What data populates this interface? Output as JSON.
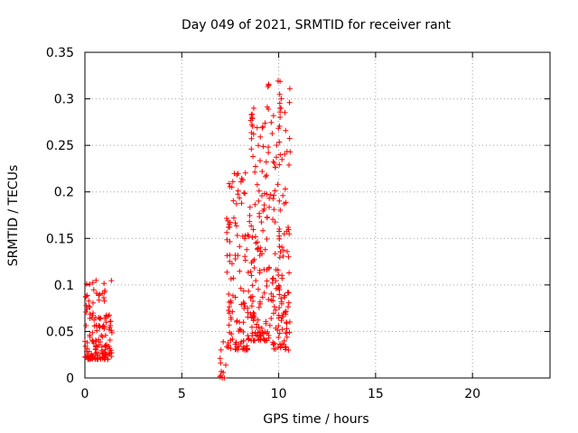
{
  "chart_data": {
    "type": "scatter",
    "title": "Day 049 of 2021, SRMTID for receiver rant",
    "xlabel": "GPS time / hours",
    "ylabel": "SRMTID / TECUs",
    "xlim": [
      0,
      24
    ],
    "ylim": [
      0,
      0.35
    ],
    "xticks": [
      0,
      5,
      10,
      15,
      20
    ],
    "xtick_labels": [
      "0",
      "5",
      "10",
      "15",
      "20"
    ],
    "yticks": [
      0,
      0.05,
      0.1,
      0.15,
      0.2,
      0.25,
      0.3,
      0.35
    ],
    "ytick_labels": [
      "0",
      "0.05",
      "0.1",
      "0.15",
      "0.2",
      "0.25",
      "0.3",
      "0.35"
    ],
    "grid": true,
    "marker": "+",
    "color": "#ff0000",
    "series": [
      {
        "name": "SRMTID",
        "clusters": [
          {
            "x_start": 0.0,
            "x_end": 1.4,
            "y_min": 0.02,
            "y_max": 0.105,
            "count": 150
          },
          {
            "x_start": 6.9,
            "x_end": 7.3,
            "y_min": 0.0,
            "y_max": 0.04,
            "count": 12
          },
          {
            "x_start": 7.3,
            "x_end": 8.4,
            "y_min": 0.03,
            "y_max": 0.225,
            "count": 110
          },
          {
            "x_start": 8.4,
            "x_end": 9.4,
            "y_min": 0.04,
            "y_max": 0.29,
            "count": 130
          },
          {
            "x_start": 9.4,
            "x_end": 10.6,
            "y_min": 0.03,
            "y_max": 0.32,
            "count": 150
          }
        ],
        "peaks": [
          {
            "x": 8.6,
            "y": 0.29
          },
          {
            "x": 10.1,
            "y": 0.317
          }
        ]
      }
    ]
  }
}
